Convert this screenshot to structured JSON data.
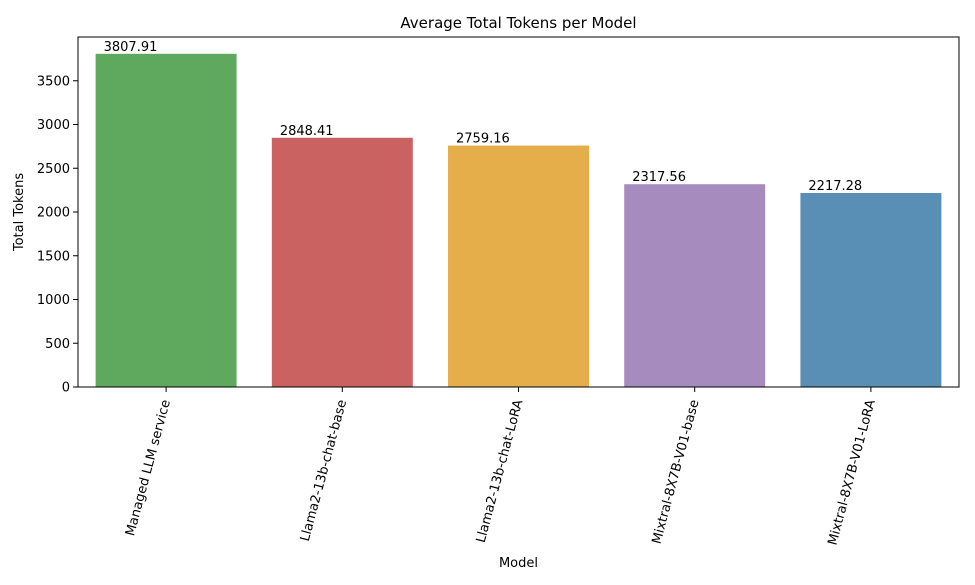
{
  "chart_data": {
    "type": "bar",
    "title": "Average Total Tokens per Model",
    "xlabel": "Model",
    "ylabel": "Total Tokens",
    "categories": [
      "Managed LLM service",
      "Llama2-13b-chat-base",
      "Llama2-13b-chat-LoRA",
      "Mixtral-8X7B-V01-base",
      "Mixtral-8X7B-V01-LoRA"
    ],
    "values": [
      3807.91,
      2848.41,
      2759.16,
      2317.56,
      2217.28
    ],
    "data_labels": [
      "3807.91",
      "2848.41",
      "2759.16",
      "2317.56",
      "2217.28"
    ],
    "colors": [
      "#5ea95d",
      "#ca6262",
      "#e5ae4b",
      "#a68bbf",
      "#5a8fb5"
    ],
    "yticks": [
      0,
      500,
      1000,
      1500,
      2000,
      2500,
      3000,
      3500
    ],
    "ylim": [
      0,
      4000
    ],
    "grid": false
  }
}
